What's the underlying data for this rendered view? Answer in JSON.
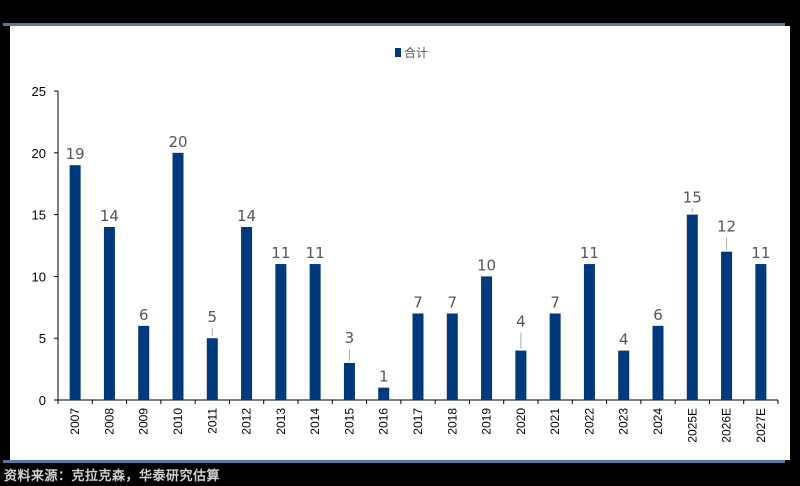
{
  "legend": {
    "label": "合计",
    "color": "#003a7d"
  },
  "source": "资料来源：克拉克森，华泰研究估算",
  "colors": {
    "bar": "#003a7d",
    "rule": "#5878a6",
    "label": "#555555",
    "leader": "#aaaaaa"
  },
  "chart_data": {
    "type": "bar",
    "title": "",
    "xlabel": "",
    "ylabel": "",
    "ylim": [
      0,
      25
    ],
    "yticks": [
      0,
      5,
      10,
      15,
      20,
      25
    ],
    "grid": false,
    "legend_position": "top",
    "categories": [
      "2007",
      "2008",
      "2009",
      "2010",
      "2011",
      "2012",
      "2013",
      "2014",
      "2015",
      "2016",
      "2017",
      "2018",
      "2019",
      "2020",
      "2021",
      "2022",
      "2023",
      "2024",
      "2025E",
      "2026E",
      "2027E"
    ],
    "series": [
      {
        "name": "合计",
        "values": [
          19,
          14,
          6,
          20,
          5,
          14,
          11,
          11,
          3,
          1,
          7,
          7,
          10,
          4,
          7,
          11,
          4,
          6,
          15,
          12,
          11
        ]
      }
    ]
  }
}
